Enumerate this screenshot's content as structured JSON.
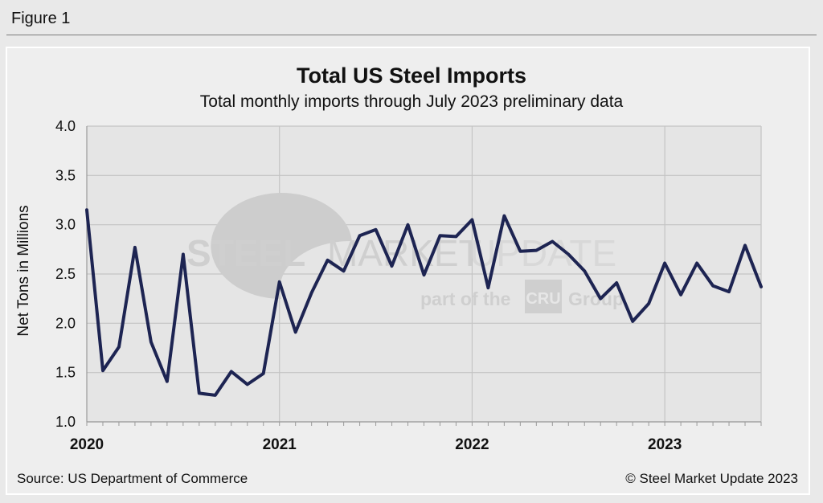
{
  "figure_label": "Figure 1",
  "footer": {
    "source": "Source: US Department of Commerce",
    "copyright": "© Steel Market Update 2023"
  },
  "watermark": {
    "brand_a": "STEEL",
    "brand_b": "MARKET",
    "brand_c": "UPDATE",
    "tagline_a": "part of the",
    "logo": "CRU",
    "tagline_b": "Group"
  },
  "colors": {
    "line": "#1d2452",
    "grid": "#c4c4c4",
    "plot_bg": "#e5e5e5",
    "panel_bg": "#eeeeee"
  },
  "chart_data": {
    "type": "line",
    "title": "Total US Steel Imports",
    "subtitle": "Total monthly imports through July 2023 preliminary data",
    "ylabel": "Net Tons in Millions",
    "xlabel": "",
    "ylim": [
      1.0,
      4.0
    ],
    "yticks": [
      "1.0",
      "1.5",
      "2.0",
      "2.5",
      "3.0",
      "3.5",
      "4.0"
    ],
    "ytick_values": [
      1.0,
      1.5,
      2.0,
      2.5,
      3.0,
      3.5,
      4.0
    ],
    "xtick_labels": [
      "2020",
      "2021",
      "2022",
      "2023"
    ],
    "xtick_month_index": [
      0,
      12,
      24,
      36
    ],
    "n_months": 43,
    "grid": true,
    "series": [
      {
        "name": "Total US Steel Imports",
        "values": [
          3.15,
          1.52,
          1.76,
          2.77,
          1.81,
          1.41,
          2.7,
          1.29,
          1.27,
          1.51,
          1.38,
          1.49,
          2.42,
          1.91,
          2.31,
          2.64,
          2.53,
          2.89,
          2.95,
          2.58,
          3.0,
          2.49,
          2.89,
          2.88,
          3.05,
          2.36,
          3.09,
          2.73,
          2.74,
          2.83,
          2.7,
          2.53,
          2.25,
          2.41,
          2.02,
          2.2,
          2.61,
          2.29,
          2.61,
          2.38,
          2.32,
          2.79,
          2.37
        ]
      }
    ]
  }
}
